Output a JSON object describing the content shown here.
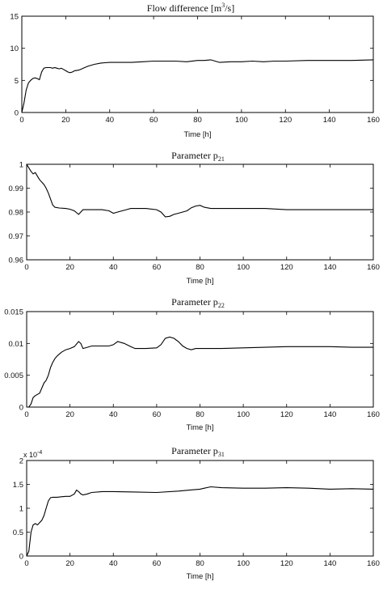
{
  "chart_data": [
    {
      "type": "line",
      "title": "Flow difference [m",
      "title_sup": "3",
      "title_tail": "/s]",
      "xlabel": "Time [h]",
      "ylabel": "",
      "xlim": [
        0,
        160
      ],
      "ylim": [
        0,
        15
      ],
      "xticks": [
        0,
        20,
        40,
        60,
        80,
        100,
        120,
        140,
        160
      ],
      "yticks": [
        0,
        5,
        10,
        15
      ],
      "ytick_labels": [
        "0",
        "5",
        "10",
        "15"
      ],
      "series": [
        {
          "x": [
            0,
            1,
            2,
            3,
            4,
            5,
            6,
            7,
            8,
            9,
            10,
            11,
            12,
            13,
            14,
            15,
            16,
            17,
            18,
            19,
            20,
            21,
            22,
            23,
            24,
            26,
            28,
            30,
            33,
            36,
            40,
            45,
            50,
            55,
            60,
            65,
            70,
            75,
            80,
            83,
            86,
            88,
            90,
            95,
            100,
            105,
            110,
            115,
            120,
            130,
            140,
            150,
            160
          ],
          "y": [
            0,
            1.5,
            3.5,
            4.6,
            5.0,
            5.3,
            5.4,
            5.3,
            5.1,
            6.3,
            6.9,
            7.0,
            7.0,
            7.0,
            6.9,
            7.0,
            6.9,
            6.8,
            6.9,
            6.7,
            6.5,
            6.3,
            6.2,
            6.3,
            6.5,
            6.6,
            6.9,
            7.2,
            7.5,
            7.7,
            7.8,
            7.8,
            7.8,
            7.9,
            8.0,
            8.0,
            8.0,
            7.9,
            8.1,
            8.1,
            8.2,
            8.0,
            7.8,
            7.9,
            7.9,
            8.0,
            7.9,
            8.0,
            8.0,
            8.1,
            8.1,
            8.1,
            8.2
          ]
        }
      ]
    },
    {
      "type": "line",
      "title": "Parameter p",
      "title_sub": "21",
      "xlabel": "Time [h]",
      "ylabel": "",
      "xlim": [
        0,
        160
      ],
      "ylim": [
        0.96,
        1
      ],
      "xticks": [
        0,
        20,
        40,
        60,
        80,
        100,
        120,
        140,
        160
      ],
      "yticks": [
        0.96,
        0.97,
        0.98,
        0.99,
        1
      ],
      "ytick_labels": [
        "0.96",
        "0.97",
        "0.98",
        "0.99",
        "1"
      ],
      "series": [
        {
          "x": [
            0,
            1,
            2,
            3,
            4,
            5,
            6,
            7,
            8,
            9,
            10,
            11,
            12,
            13,
            15,
            18,
            20,
            22,
            24,
            26,
            28,
            30,
            35,
            38,
            40,
            42,
            44,
            46,
            48,
            50,
            55,
            60,
            62,
            64,
            66,
            68,
            70,
            72,
            74,
            76,
            78,
            80,
            82,
            85,
            90,
            100,
            110,
            120,
            130,
            140,
            150,
            160
          ],
          "y": [
            1.0,
            0.9985,
            0.997,
            0.996,
            0.9965,
            0.995,
            0.9935,
            0.9925,
            0.9915,
            0.99,
            0.988,
            0.9855,
            0.983,
            0.982,
            0.9817,
            0.9815,
            0.9812,
            0.9805,
            0.979,
            0.981,
            0.981,
            0.981,
            0.981,
            0.9805,
            0.9795,
            0.98,
            0.9805,
            0.981,
            0.9815,
            0.9815,
            0.9815,
            0.981,
            0.98,
            0.978,
            0.9782,
            0.979,
            0.9795,
            0.98,
            0.9805,
            0.9818,
            0.9825,
            0.9828,
            0.982,
            0.9815,
            0.9815,
            0.9815,
            0.9815,
            0.981,
            0.981,
            0.981,
            0.981,
            0.981
          ]
        }
      ]
    },
    {
      "type": "line",
      "title": "Parameter p",
      "title_sub": "22",
      "xlabel": "Time [h]",
      "ylabel": "",
      "xlim": [
        0,
        160
      ],
      "ylim": [
        0,
        0.015
      ],
      "xticks": [
        0,
        20,
        40,
        60,
        80,
        100,
        120,
        140,
        160
      ],
      "yticks": [
        0,
        0.005,
        0.01,
        0.015
      ],
      "ytick_labels": [
        "0",
        "0.005",
        "0.01",
        "0.015"
      ],
      "series": [
        {
          "x": [
            0,
            1,
            2,
            3,
            4,
            5,
            6,
            7,
            8,
            9,
            10,
            11,
            12,
            13,
            14,
            15,
            16,
            18,
            20,
            22,
            24,
            25,
            26,
            28,
            30,
            35,
            38,
            40,
            42,
            45,
            48,
            50,
            55,
            60,
            62,
            64,
            66,
            68,
            70,
            72,
            74,
            76,
            78,
            80,
            85,
            90,
            100,
            110,
            120,
            130,
            140,
            150,
            160
          ],
          "y": [
            0,
            0,
            0.0005,
            0.0015,
            0.0018,
            0.002,
            0.0022,
            0.003,
            0.0038,
            0.0042,
            0.005,
            0.0062,
            0.007,
            0.0076,
            0.008,
            0.0083,
            0.0086,
            0.009,
            0.0092,
            0.0095,
            0.0103,
            0.01,
            0.0092,
            0.0094,
            0.0096,
            0.0096,
            0.0096,
            0.0098,
            0.0103,
            0.01,
            0.0095,
            0.0092,
            0.0092,
            0.0093,
            0.0098,
            0.0108,
            0.011,
            0.0108,
            0.0103,
            0.0096,
            0.0092,
            0.009,
            0.0092,
            0.0092,
            0.0092,
            0.0092,
            0.0093,
            0.0094,
            0.0095,
            0.0095,
            0.0095,
            0.0094,
            0.0094
          ]
        }
      ]
    },
    {
      "type": "line",
      "title": "Parameter p",
      "title_sub": "31",
      "xlabel": "Time [h]",
      "ylabel": "",
      "multiplier_label": "x 10",
      "multiplier_exp": "-4",
      "xlim": [
        0,
        160
      ],
      "ylim": [
        0,
        2
      ],
      "xticks": [
        0,
        20,
        40,
        60,
        80,
        100,
        120,
        140,
        160
      ],
      "yticks": [
        0,
        0.5,
        1,
        1.5,
        2
      ],
      "ytick_labels": [
        "0",
        "0.5",
        "1",
        "1.5",
        "2"
      ],
      "series": [
        {
          "x": [
            0,
            1,
            2,
            3,
            4,
            5,
            6,
            7,
            8,
            9,
            10,
            11,
            12,
            14,
            16,
            18,
            20,
            22,
            23,
            24,
            25,
            26,
            28,
            30,
            35,
            40,
            50,
            60,
            70,
            75,
            80,
            82,
            85,
            90,
            100,
            110,
            120,
            130,
            140,
            150,
            160
          ],
          "y": [
            0,
            0.1,
            0.5,
            0.65,
            0.68,
            0.65,
            0.7,
            0.75,
            0.85,
            1.0,
            1.15,
            1.22,
            1.23,
            1.23,
            1.24,
            1.25,
            1.25,
            1.3,
            1.38,
            1.35,
            1.3,
            1.28,
            1.3,
            1.33,
            1.35,
            1.35,
            1.34,
            1.33,
            1.36,
            1.38,
            1.4,
            1.42,
            1.45,
            1.43,
            1.42,
            1.42,
            1.43,
            1.42,
            1.4,
            1.41,
            1.4
          ]
        }
      ]
    }
  ]
}
